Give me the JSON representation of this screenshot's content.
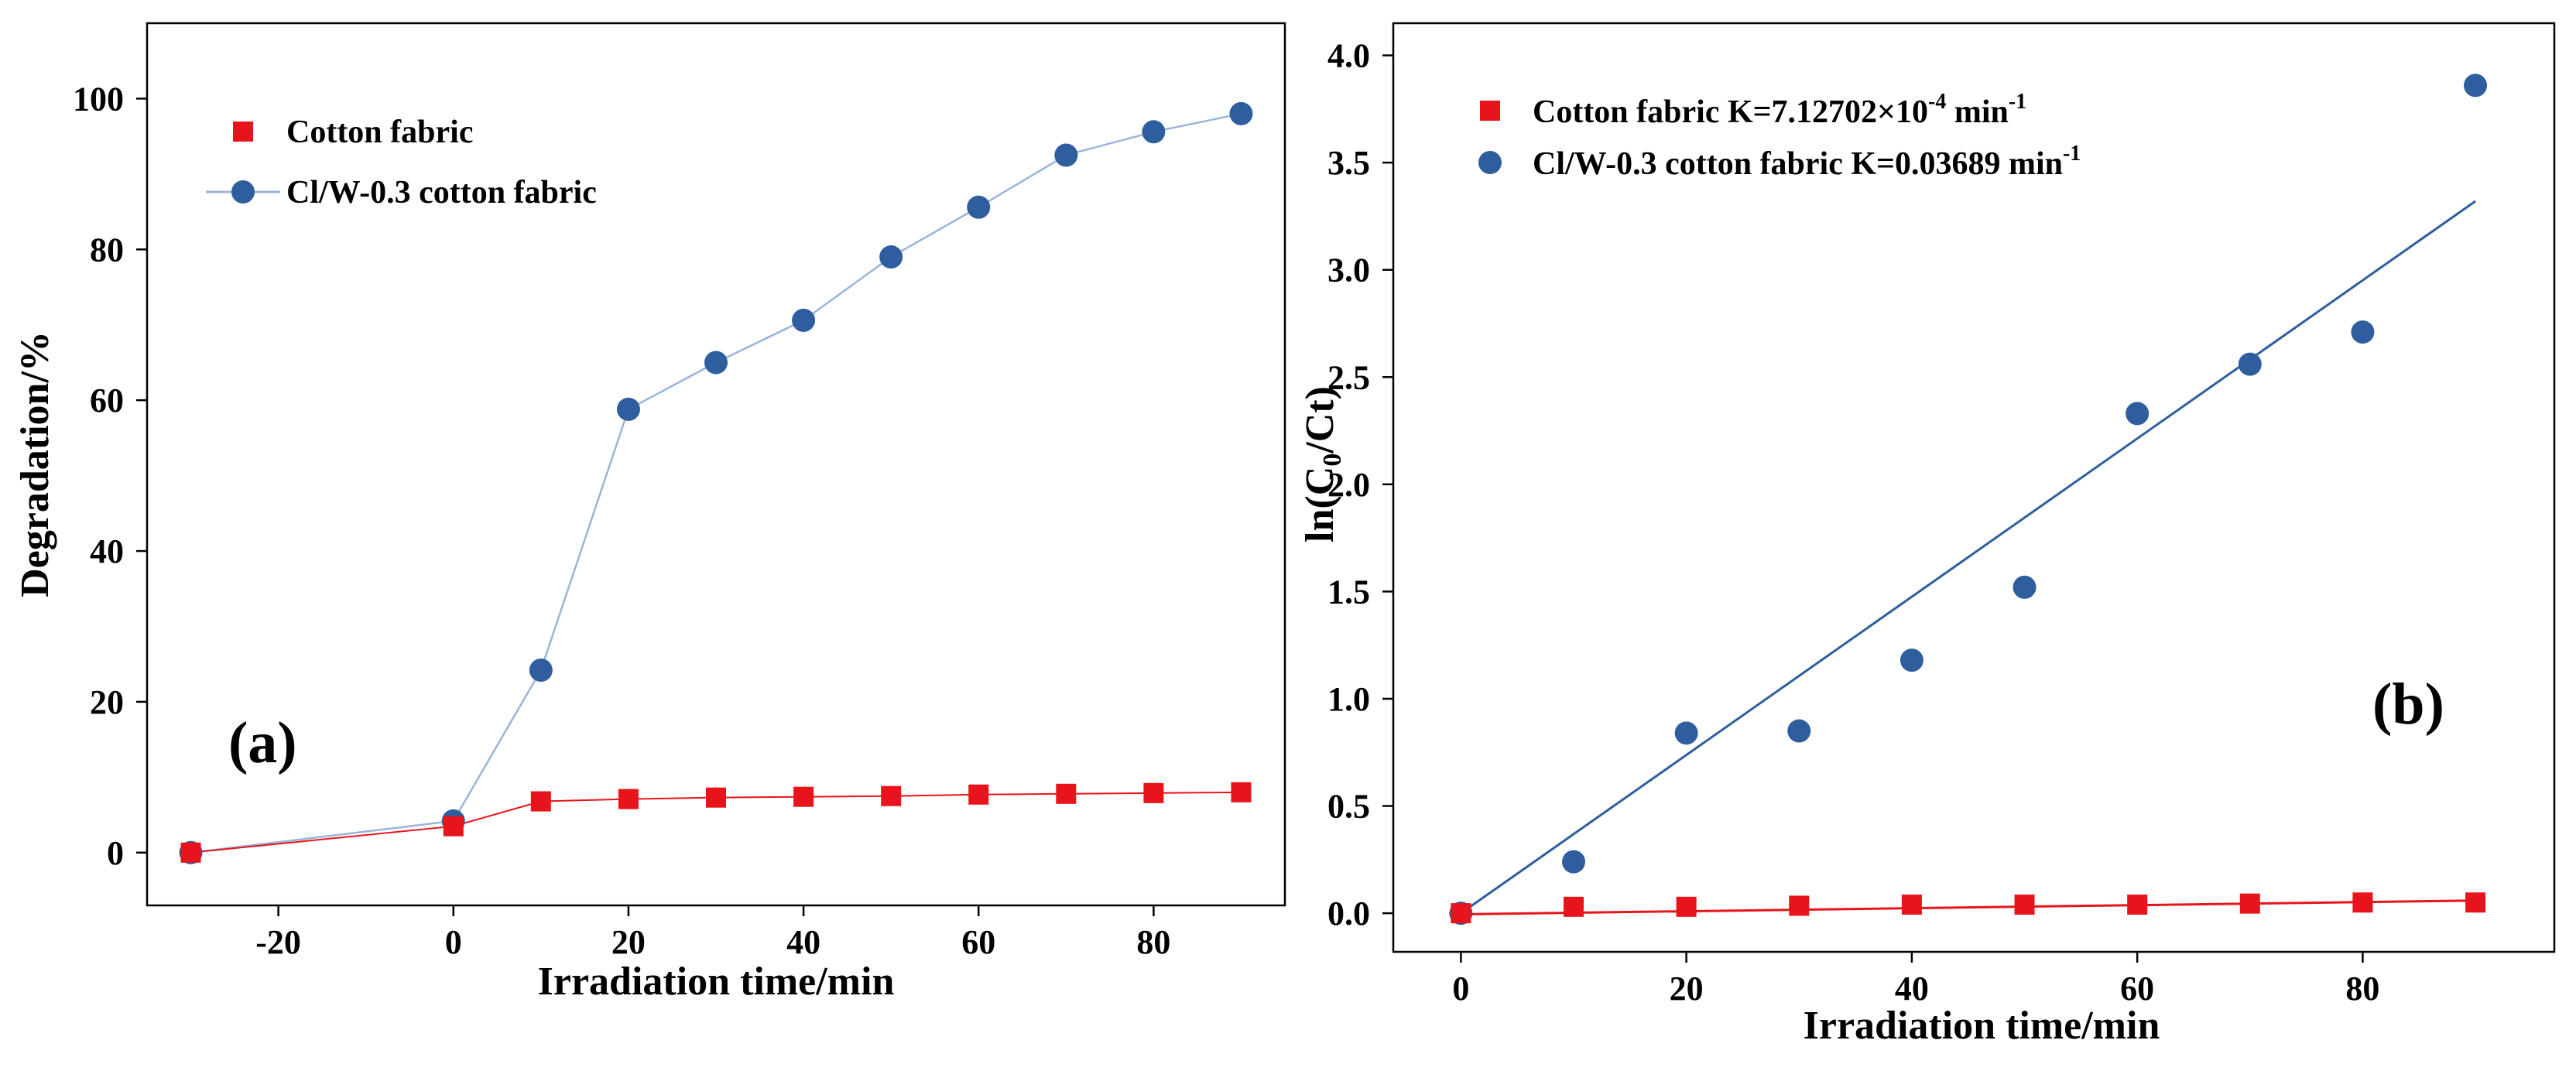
{
  "chart_data": [
    {
      "type": "line",
      "panel_label": "(a)",
      "xlabel": "Irradiation time/min",
      "ylabel": "Degradation/%",
      "xlim": [
        -35,
        95
      ],
      "ylim": [
        -7,
        110
      ],
      "xticks": [
        -20,
        0,
        20,
        40,
        60,
        80
      ],
      "yticks": [
        0,
        20,
        40,
        60,
        80,
        100
      ],
      "grid": false,
      "legend_position": "top-left",
      "series": [
        {
          "name": "Cotton fabric",
          "marker": "square",
          "color": "#e8141b",
          "x": [
            -30,
            0,
            10,
            20,
            30,
            40,
            50,
            60,
            70,
            80,
            90
          ],
          "y": [
            0,
            3.5,
            6.8,
            7.1,
            7.3,
            7.4,
            7.5,
            7.7,
            7.8,
            7.9,
            8.0
          ]
        },
        {
          "name": "Cl/W-0.3 cotton fabric",
          "marker": "circle",
          "color": "#2e5e9e",
          "line_color": "#9ab4d8",
          "x": [
            -30,
            0,
            10,
            20,
            30,
            40,
            50,
            60,
            70,
            80,
            90
          ],
          "y": [
            0,
            4.2,
            24.2,
            58.8,
            65.0,
            70.6,
            79.0,
            85.6,
            92.5,
            95.6,
            98.0
          ]
        }
      ]
    },
    {
      "type": "scatter",
      "panel_label": "(b)",
      "xlabel": "Irradiation time/min",
      "ylabel_parts": [
        "ln(C",
        "0",
        "/Ct)"
      ],
      "xlim": [
        -6,
        97
      ],
      "ylim": [
        -0.18,
        4.15
      ],
      "xticks": [
        0,
        20,
        40,
        60,
        80
      ],
      "yticks": [
        0.0,
        0.5,
        1.0,
        1.5,
        2.0,
        2.5,
        3.0,
        3.5,
        4.0
      ],
      "ytick_labels": [
        "0.0",
        "0.5",
        "1.0",
        "1.5",
        "2.0",
        "2.5",
        "3.0",
        "3.5",
        "4.0"
      ],
      "grid": false,
      "legend_position": "top-left",
      "series": [
        {
          "name": "Cotton fabric",
          "legend_parts": [
            "Cotton fabric K=7.12702×10",
            "-4",
            " min",
            "-1"
          ],
          "marker": "square",
          "color": "#e8141b",
          "x": [
            0,
            10,
            20,
            30,
            40,
            50,
            60,
            70,
            80,
            90
          ],
          "y": [
            0.0,
            0.03,
            0.03,
            0.035,
            0.04,
            0.04,
            0.04,
            0.045,
            0.05,
            0.05
          ],
          "fit": {
            "slope": 0.000712702,
            "intercept": -0.005,
            "x_range": [
              0,
              90
            ]
          }
        },
        {
          "name": "Cl/W-0.3 cotton fabric",
          "legend_parts": [
            "Cl/W-0.3 cotton fabric K=0.03689 min",
            "-1"
          ],
          "marker": "circle",
          "color": "#2e5e9e",
          "x": [
            0,
            10,
            20,
            30,
            40,
            50,
            60,
            70,
            80,
            90
          ],
          "y": [
            0.0,
            0.24,
            0.84,
            0.85,
            1.18,
            1.52,
            2.33,
            2.56,
            2.71,
            3.86
          ],
          "fit": {
            "slope": 0.03689,
            "intercept": 0.0,
            "x_range": [
              0,
              90
            ]
          }
        }
      ]
    }
  ]
}
